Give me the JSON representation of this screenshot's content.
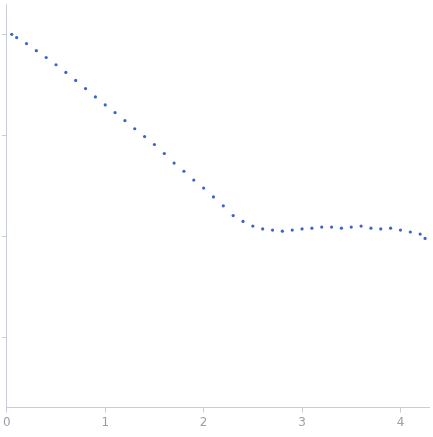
{
  "chart_data": {
    "type": "scatter",
    "color": "#3a64c8",
    "log": "y",
    "grid": false,
    "tick_labels": "x",
    "marker": "circle",
    "x": [
      0.05,
      0.1,
      0.2,
      0.3,
      0.4,
      0.5,
      0.6,
      0.7,
      0.8,
      0.9,
      1.0,
      1.1,
      1.2,
      1.3,
      1.4,
      1.5,
      1.6,
      1.7,
      1.8,
      1.9,
      2.0,
      2.1,
      2.2,
      2.3,
      2.4,
      2.5,
      2.6,
      2.7,
      2.8,
      2.9,
      3.0,
      3.1,
      3.2,
      3.3,
      3.4,
      3.5,
      3.6,
      3.7,
      3.8,
      3.9,
      4.0,
      4.1,
      4.2,
      4.25
    ],
    "values": [
      1.0,
      0.93,
      0.81,
      0.69,
      0.59,
      0.5,
      0.42,
      0.35,
      0.29,
      0.24,
      0.2,
      0.168,
      0.14,
      0.116,
      0.097,
      0.081,
      0.066,
      0.053,
      0.044,
      0.036,
      0.03,
      0.0245,
      0.02,
      0.016,
      0.014,
      0.0126,
      0.0118,
      0.0115,
      0.0112,
      0.0115,
      0.0118,
      0.012,
      0.0123,
      0.0123,
      0.012,
      0.0123,
      0.0126,
      0.012,
      0.0118,
      0.012,
      0.0115,
      0.011,
      0.0105,
      0.0095
    ],
    "xlim": [
      0,
      4.29
    ],
    "xticks": [
      0,
      1,
      2,
      3,
      4
    ],
    "ylim": [
      0.0002,
      2
    ],
    "yticks": [
      0.001,
      0.01,
      0.1,
      1
    ]
  }
}
